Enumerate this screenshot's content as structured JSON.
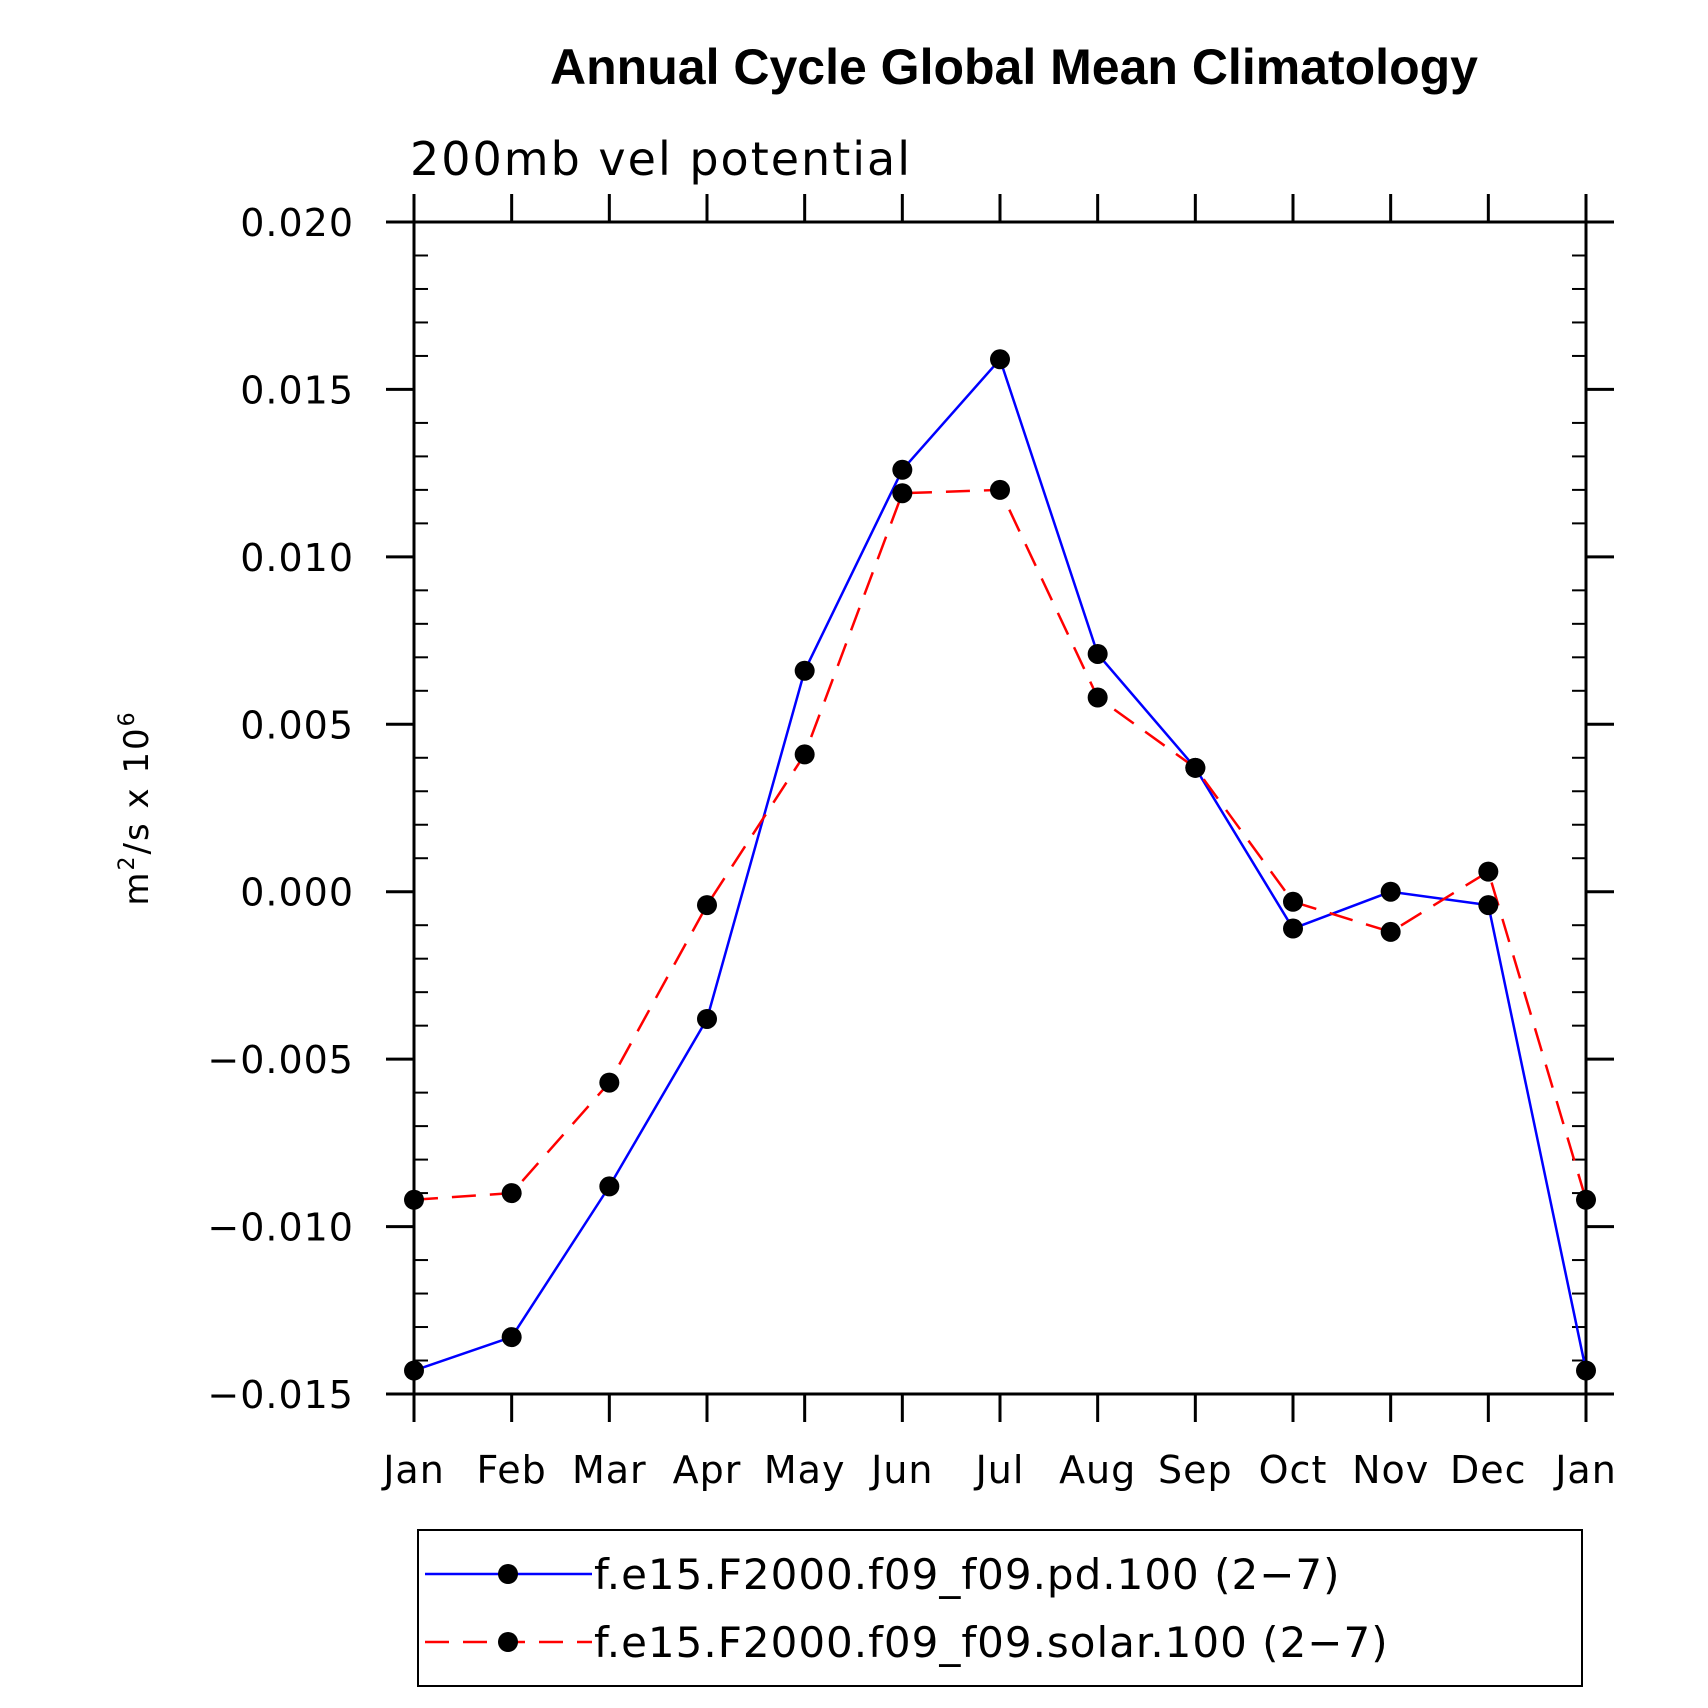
{
  "chart_data": {
    "type": "line",
    "title": "Annual Cycle Global Mean Climatology",
    "subtitle": "200mb vel potential",
    "ylabel": {
      "base": "m",
      "sup1": "2",
      "mid": "/s x 10",
      "sup2": "6"
    },
    "xlabel": "",
    "categories": [
      "Jan",
      "Feb",
      "Mar",
      "Apr",
      "May",
      "Jun",
      "Jul",
      "Aug",
      "Sep",
      "Oct",
      "Nov",
      "Dec",
      "Jan"
    ],
    "ylim": [
      -0.015,
      0.02
    ],
    "yticks": [
      -0.015,
      -0.01,
      -0.005,
      0.0,
      0.005,
      0.01,
      0.015,
      0.02
    ],
    "ytick_labels": [
      "−0.015",
      "−0.010",
      "−0.005",
      "0.000",
      "0.005",
      "0.010",
      "0.015",
      "0.020"
    ],
    "grid": false,
    "legend_position": "bottom",
    "series": [
      {
        "name": "f.e15.F2000.f09_f09.pd.100 (2−7)",
        "color": "#0000ff",
        "dash": "solid",
        "values": [
          -0.0143,
          -0.0133,
          -0.0088,
          -0.0038,
          0.0066,
          0.0126,
          0.0159,
          0.0071,
          0.0037,
          -0.0011,
          0.0,
          -0.0004,
          -0.0143
        ]
      },
      {
        "name": "f.e15.F2000.f09_f09.solar.100 (2−7)",
        "color": "#ff0000",
        "dash": "dashed",
        "values": [
          -0.0092,
          -0.009,
          -0.0057,
          -0.0004,
          0.0041,
          0.0119,
          0.012,
          0.0058,
          0.0037,
          -0.0003,
          -0.0012,
          0.0006,
          -0.0092
        ]
      }
    ]
  }
}
